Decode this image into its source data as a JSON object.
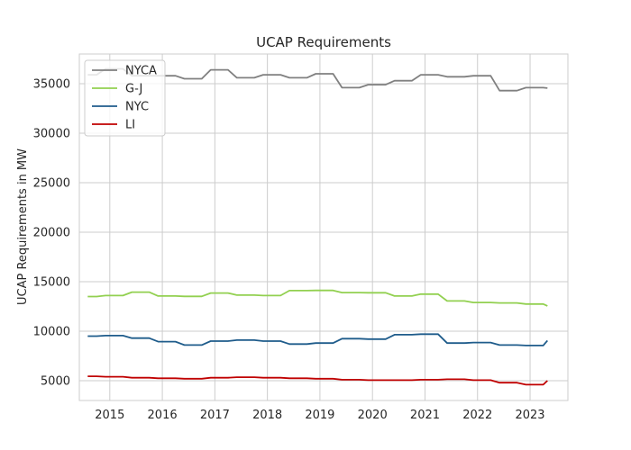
{
  "chart_data": {
    "type": "line",
    "title": "UCAP Requirements",
    "xlabel": "",
    "ylabel": "UCAP Requirements in MW",
    "xlim": [
      2014.42,
      2023.72
    ],
    "ylim": [
      3000,
      38000
    ],
    "xticks": [
      2015,
      2016,
      2017,
      2018,
      2019,
      2020,
      2021,
      2022,
      2023
    ],
    "yticks": [
      5000,
      10000,
      15000,
      20000,
      25000,
      30000,
      35000
    ],
    "grid": true,
    "legend_position": "top-left",
    "x": [
      2014.58,
      2014.75,
      2014.92,
      2015.08,
      2015.25,
      2015.42,
      2015.58,
      2015.75,
      2015.92,
      2016.08,
      2016.25,
      2016.42,
      2016.58,
      2016.75,
      2016.92,
      2017.08,
      2017.25,
      2017.42,
      2017.58,
      2017.75,
      2017.92,
      2018.08,
      2018.25,
      2018.42,
      2018.58,
      2018.75,
      2018.92,
      2019.08,
      2019.25,
      2019.42,
      2019.58,
      2019.75,
      2019.92,
      2020.08,
      2020.25,
      2020.42,
      2020.58,
      2020.75,
      2020.92,
      2021.08,
      2021.25,
      2021.42,
      2021.58,
      2021.75,
      2021.92,
      2022.08,
      2022.25,
      2022.42,
      2022.58,
      2022.75,
      2022.92,
      2023.08,
      2023.25,
      2023.33
    ],
    "series": [
      {
        "name": "NYCA",
        "color": "#808080",
        "values": [
          35900,
          35900,
          36500,
          36500,
          36500,
          35800,
          35800,
          35800,
          35800,
          35800,
          35800,
          35500,
          35500,
          35500,
          36400,
          36400,
          36400,
          35600,
          35600,
          35600,
          35900,
          35900,
          35900,
          35600,
          35600,
          35600,
          36000,
          36000,
          36000,
          34600,
          34600,
          34600,
          34900,
          34900,
          34900,
          35300,
          35300,
          35300,
          35900,
          35900,
          35900,
          35700,
          35700,
          35700,
          35800,
          35800,
          35800,
          34300,
          34300,
          34300,
          34600,
          34600,
          34600,
          34550
        ]
      },
      {
        "name": "G-J",
        "color": "#92d050",
        "values": [
          13500,
          13500,
          13600,
          13600,
          13600,
          13950,
          13950,
          13950,
          13550,
          13550,
          13550,
          13520,
          13520,
          13520,
          13850,
          13850,
          13850,
          13650,
          13650,
          13650,
          13600,
          13600,
          13600,
          14100,
          14100,
          14100,
          14120,
          14120,
          14120,
          13900,
          13900,
          13900,
          13880,
          13880,
          13880,
          13550,
          13550,
          13550,
          13750,
          13750,
          13750,
          13050,
          13050,
          13050,
          12900,
          12900,
          12900,
          12850,
          12850,
          12850,
          12750,
          12750,
          12750,
          12550
        ]
      },
      {
        "name": "NYC",
        "color": "#1f5c8b",
        "values": [
          9500,
          9500,
          9550,
          9550,
          9550,
          9300,
          9300,
          9300,
          8950,
          8950,
          8950,
          8600,
          8600,
          8600,
          9000,
          9000,
          9000,
          9100,
          9100,
          9100,
          9000,
          9000,
          9000,
          8700,
          8700,
          8700,
          8800,
          8800,
          8800,
          9250,
          9250,
          9250,
          9200,
          9200,
          9200,
          9650,
          9650,
          9650,
          9700,
          9700,
          9700,
          8800,
          8800,
          8800,
          8850,
          8850,
          8850,
          8600,
          8600,
          8600,
          8550,
          8550,
          8550,
          9050
        ]
      },
      {
        "name": "LI",
        "color": "#c00000",
        "values": [
          5450,
          5450,
          5400,
          5400,
          5400,
          5300,
          5300,
          5300,
          5250,
          5250,
          5250,
          5200,
          5200,
          5200,
          5300,
          5300,
          5300,
          5350,
          5350,
          5350,
          5300,
          5300,
          5300,
          5250,
          5250,
          5250,
          5200,
          5200,
          5200,
          5100,
          5100,
          5100,
          5050,
          5050,
          5050,
          5050,
          5050,
          5050,
          5100,
          5100,
          5100,
          5150,
          5150,
          5150,
          5050,
          5050,
          5050,
          4800,
          4800,
          4800,
          4600,
          4600,
          4600,
          5000
        ]
      }
    ]
  }
}
